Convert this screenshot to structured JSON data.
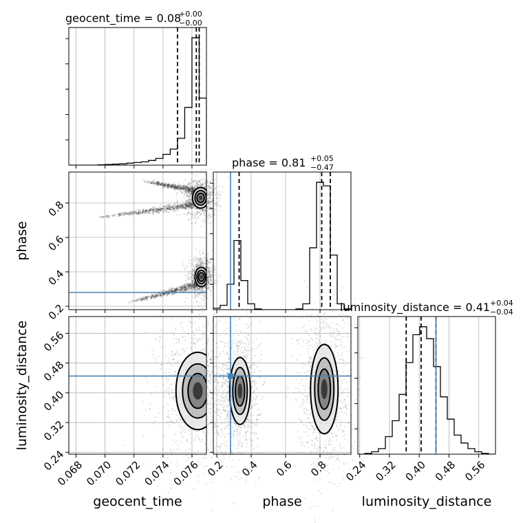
{
  "chart_data": {
    "type": "corner",
    "parameters": [
      "geocent_time",
      "phase",
      "luminosity_distance"
    ],
    "truths": {
      "geocent_time": null,
      "phase": 0.28,
      "luminosity_distance": 0.445
    },
    "ranges": {
      "geocent_time": [
        0.0675,
        0.077
      ],
      "phase": [
        0.18,
        0.98
      ],
      "luminosity_distance": [
        0.235,
        0.605
      ]
    },
    "ticks": {
      "geocent_time": [
        "0.068",
        "0.070",
        "0.072",
        "0.074",
        "0.076"
      ],
      "phase": [
        "0.2",
        "0.4",
        "0.6",
        "0.8"
      ],
      "luminosity_distance": [
        "0.24",
        "0.32",
        "0.40",
        "0.48",
        "0.56"
      ]
    },
    "titles": {
      "geocent_time": {
        "name": "geocent_time",
        "median": "0.08",
        "plus": "+0.00",
        "minus": "−0.00"
      },
      "phase": {
        "name": "phase",
        "median": "0.81",
        "plus": "+0.05",
        "minus": "−0.47"
      },
      "luminosity_distance": {
        "name": "luminosity_distance",
        "median": "0.41",
        "plus": "+0.04",
        "minus": "−0.04"
      }
    },
    "quantiles": {
      "geocent_time": [
        0.075,
        0.0763,
        0.0765
      ],
      "phase": [
        0.33,
        0.81,
        0.86
      ],
      "luminosity_distance": [
        0.365,
        0.405,
        0.445
      ]
    },
    "histograms": {
      "geocent_time": {
        "edges": [
          0.0675,
          0.068,
          0.0685,
          0.069,
          0.0695,
          0.07,
          0.0705,
          0.071,
          0.0715,
          0.072,
          0.0725,
          0.073,
          0.0735,
          0.074,
          0.0745,
          0.075,
          0.0755,
          0.076,
          0.0765,
          0.077
        ],
        "counts": [
          0,
          0,
          0,
          0,
          0.5,
          1,
          1.5,
          2,
          3,
          4,
          5,
          7,
          10,
          16,
          24,
          40,
          86,
          190,
          100
        ]
      },
      "phase": {
        "edges": [
          0.18,
          0.22,
          0.26,
          0.3,
          0.34,
          0.38,
          0.42,
          0.46,
          0.5,
          0.54,
          0.58,
          0.62,
          0.66,
          0.7,
          0.74,
          0.78,
          0.82,
          0.86,
          0.9,
          0.94,
          0.98
        ],
        "counts": [
          2,
          6,
          35,
          95,
          40,
          8,
          1,
          0,
          0,
          0,
          0,
          0,
          1,
          8,
          85,
          175,
          170,
          75,
          8,
          1
        ]
      },
      "luminosity_distance": {
        "edges": [
          0.235,
          0.2535,
          0.272,
          0.2905,
          0.309,
          0.3275,
          0.346,
          0.3645,
          0.383,
          0.4015,
          0.42,
          0.4385,
          0.457,
          0.4755,
          0.494,
          0.5125,
          0.531,
          0.5495,
          0.568,
          0.5865,
          0.605
        ],
        "counts": [
          0,
          1,
          3,
          7,
          22,
          42,
          75,
          115,
          150,
          160,
          145,
          110,
          72,
          44,
          24,
          14,
          7,
          3,
          1,
          0
        ]
      }
    },
    "contours": {
      "phase_vs_geocent_time": {
        "blobs": [
          {
            "cx": 0.0766,
            "cy": 0.83,
            "sx": 0.00028,
            "sy": 0.03
          },
          {
            "cx": 0.07665,
            "cy": 0.37,
            "sx": 0.00022,
            "sy": 0.028
          }
        ],
        "tails": [
          {
            "from": [
              0.0693,
              0.713
            ],
            "to": [
              0.077,
              0.8
            ]
          },
          {
            "from": [
              0.0725,
              0.93
            ],
            "to": [
              0.077,
              0.86
            ]
          },
          {
            "from": [
              0.0716,
              0.22
            ],
            "to": [
              0.077,
              0.34
            ]
          }
        ]
      },
      "luminosity_distance_vs_geocent_time": {
        "blobs": [
          {
            "cx": 0.0764,
            "cy": 0.405,
            "sx": 0.00075,
            "sy": 0.052
          }
        ]
      },
      "luminosity_distance_vs_phase": {
        "blobs": [
          {
            "cx": 0.335,
            "cy": 0.405,
            "sx": 0.03,
            "sy": 0.045
          },
          {
            "cx": 0.825,
            "cy": 0.41,
            "sx": 0.04,
            "sy": 0.06
          }
        ]
      }
    },
    "colors": {
      "truth": "#4682b4",
      "hist": "#000000",
      "grid": "#b0b0b0"
    }
  }
}
